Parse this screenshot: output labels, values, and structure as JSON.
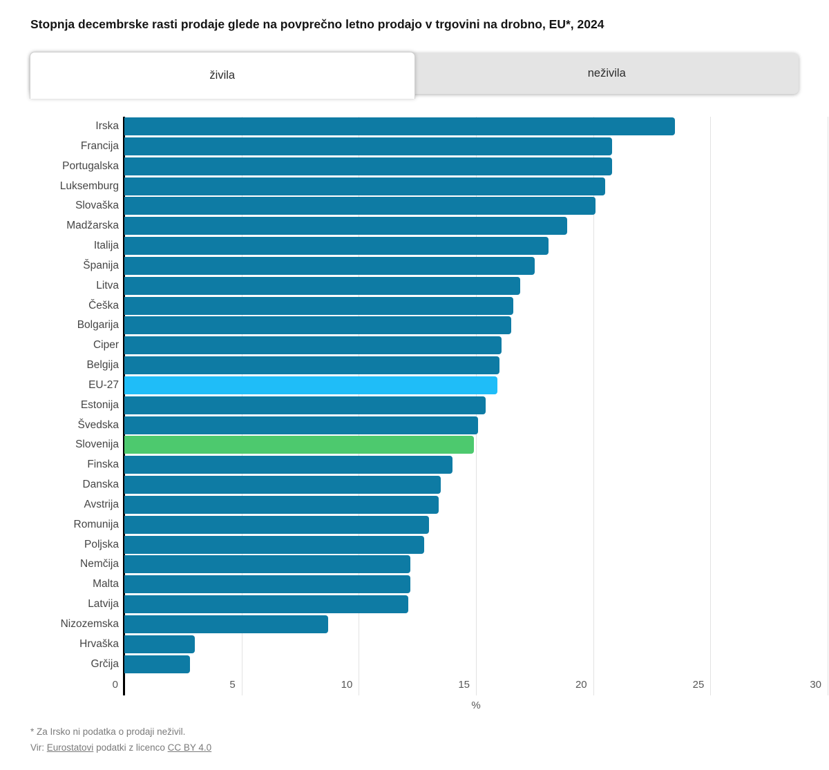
{
  "title": "Stopnja decembrske rasti prodaje glede na povprečno letno prodajo v trgovini na drobno, EU*, 2024",
  "tabs": [
    {
      "label": "živila",
      "active": true
    },
    {
      "label": "neživila",
      "active": false
    }
  ],
  "chart_data": {
    "type": "bar",
    "orientation": "horizontal",
    "title": "Stopnja decembrske rasti prodaje glede na povprečno letno prodajo v trgovini na drobno, EU*, 2024",
    "xlabel": "%",
    "xlim": [
      0,
      30
    ],
    "xticks": [
      0,
      5,
      10,
      15,
      20,
      25,
      30
    ],
    "grid": true,
    "categories": [
      "Irska",
      "Francija",
      "Portugalska",
      "Luksemburg",
      "Slovaška",
      "Madžarska",
      "Italija",
      "Španija",
      "Litva",
      "Češka",
      "Bolgarija",
      "Ciper",
      "Belgija",
      "EU-27",
      "Estonija",
      "Švedska",
      "Slovenija",
      "Finska",
      "Danska",
      "Avstrija",
      "Romunija",
      "Poljska",
      "Nemčija",
      "Malta",
      "Latvija",
      "Nizozemska",
      "Hrvaška",
      "Grčija"
    ],
    "values": [
      23.5,
      20.8,
      20.8,
      20.5,
      20.1,
      18.9,
      18.1,
      17.5,
      16.9,
      16.6,
      16.5,
      16.1,
      16.0,
      15.9,
      15.4,
      15.1,
      14.9,
      14.0,
      13.5,
      13.4,
      13.0,
      12.8,
      12.2,
      12.2,
      12.1,
      8.7,
      3.0,
      2.8
    ],
    "bar_colors": [
      "#0E7BA4",
      "#0E7BA4",
      "#0E7BA4",
      "#0E7BA4",
      "#0E7BA4",
      "#0E7BA4",
      "#0E7BA4",
      "#0E7BA4",
      "#0E7BA4",
      "#0E7BA4",
      "#0E7BA4",
      "#0E7BA4",
      "#0E7BA4",
      "#1FBDF8",
      "#0E7BA4",
      "#0E7BA4",
      "#4DC96E",
      "#0E7BA4",
      "#0E7BA4",
      "#0E7BA4",
      "#0E7BA4",
      "#0E7BA4",
      "#0E7BA4",
      "#0E7BA4",
      "#0E7BA4",
      "#0E7BA4",
      "#0E7BA4",
      "#0E7BA4"
    ],
    "palette": {
      "default": "#0E7BA4",
      "highlight_eu27": "#1FBDF8",
      "highlight_slovenia": "#4DC96E"
    }
  },
  "footer": {
    "note": "* Za Irsko ni podatka o prodaji neživil.",
    "source_prefix": "Vir: ",
    "source_link1": "Eurostatovi",
    "source_mid": " podatki z licenco ",
    "source_link2": "CC BY 4.0"
  }
}
